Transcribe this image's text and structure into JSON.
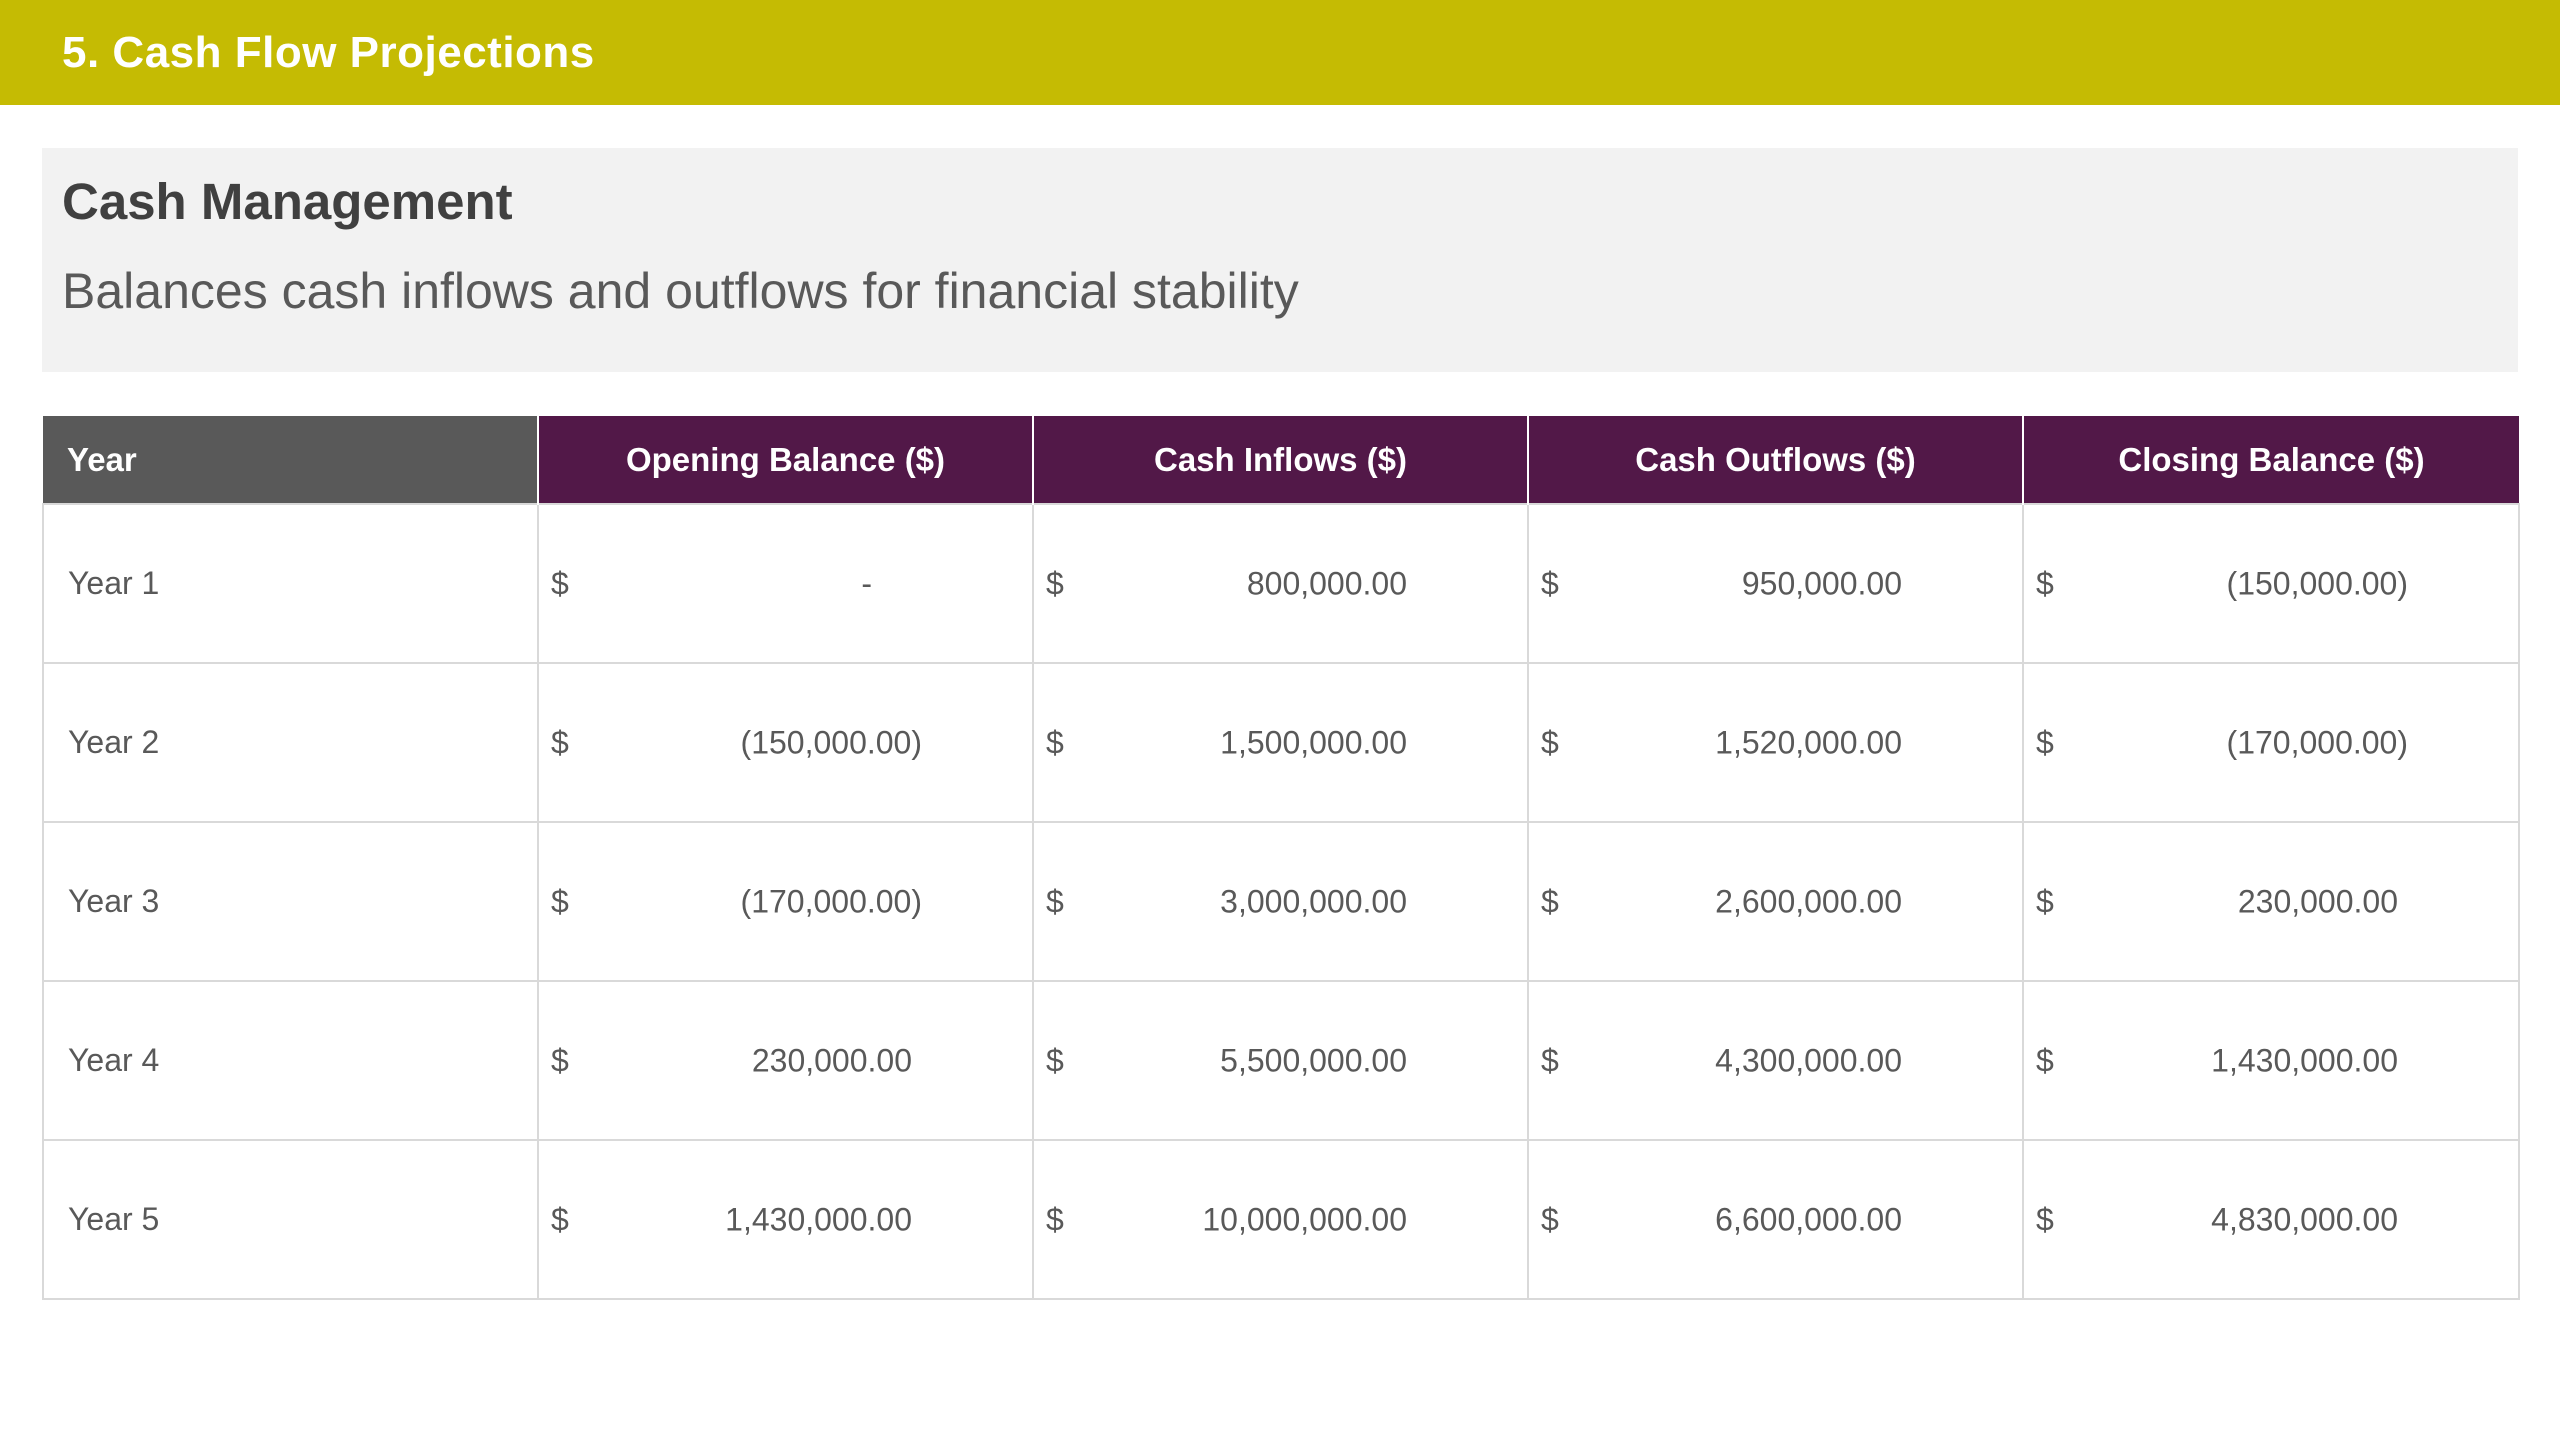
{
  "header": {
    "title": "5. Cash Flow Projections"
  },
  "info": {
    "heading": "Cash Management",
    "description": "Balances cash inflows and outflows for financial stability"
  },
  "colors": {
    "title_bar": "#c5bb03",
    "table_header": "#521848",
    "year_header": "#595959",
    "info_background": "#f2f2f2"
  },
  "table": {
    "headers": [
      "Year",
      "Opening Balance ($)",
      "Cash Inflows ($)",
      "Cash Outflows ($)",
      "Closing Balance ($)"
    ],
    "currency_symbol": "$",
    "rows": [
      {
        "year": "Year 1",
        "opening": "-",
        "inflows": "800,000.00",
        "outflows": "950,000.00",
        "closing": "(150,000.00)"
      },
      {
        "year": "Year 2",
        "opening": "(150,000.00)",
        "inflows": "1,500,000.00",
        "outflows": "1,520,000.00",
        "closing": "(170,000.00)"
      },
      {
        "year": "Year 3",
        "opening": "(170,000.00)",
        "inflows": "3,000,000.00",
        "outflows": "2,600,000.00",
        "closing": "230,000.00"
      },
      {
        "year": "Year 4",
        "opening": "230,000.00",
        "inflows": "5,500,000.00",
        "outflows": "4,300,000.00",
        "closing": "1,430,000.00"
      },
      {
        "year": "Year 5",
        "opening": "1,430,000.00",
        "inflows": "10,000,000.00",
        "outflows": "6,600,000.00",
        "closing": "4,830,000.00"
      }
    ]
  }
}
